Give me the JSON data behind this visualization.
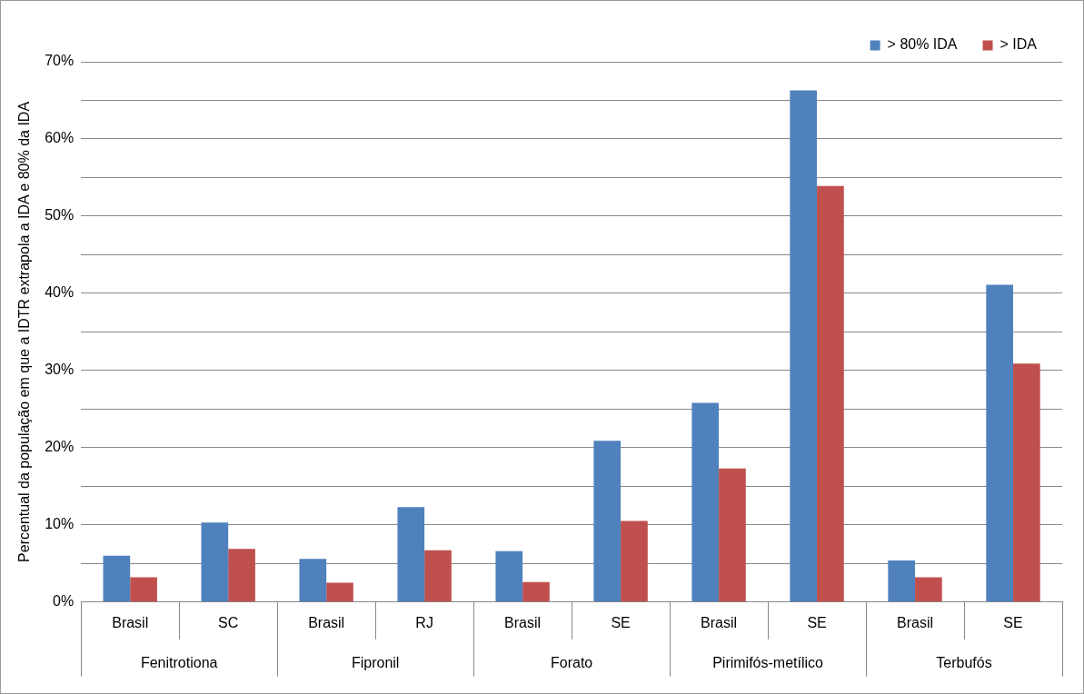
{
  "chart_data": {
    "type": "bar",
    "ylabel": "Percentual da população em que a IDTR extrapola a IDA e 80% da IDA",
    "categories": [
      "Brasil",
      "SC",
      "Brasil",
      "RJ",
      "Brasil",
      "SE",
      "Brasil",
      "SE",
      "Brasil",
      "SE"
    ],
    "annotations": [
      "Fenitrotiona",
      "Fipronil",
      "Forato",
      "Pirimifós-metílico",
      "Terbufós"
    ],
    "series": [
      {
        "name": "> 80% IDA",
        "color": "#4f81bd",
        "values": [
          6.0,
          10.3,
          5.6,
          12.3,
          6.6,
          20.9,
          25.8,
          66.3,
          5.4,
          41.1
        ]
      },
      {
        "name": "> IDA",
        "color": "#c0504d",
        "values": [
          3.2,
          6.9,
          2.5,
          6.7,
          2.6,
          10.5,
          17.3,
          53.9,
          3.2,
          30.9
        ]
      }
    ],
    "ylim": [
      0,
      70
    ],
    "yticks": [
      {
        "value": 0,
        "label": "0%"
      },
      {
        "value": 5,
        "label": null
      },
      {
        "value": 10,
        "label": "10%"
      },
      {
        "value": 15,
        "label": null
      },
      {
        "value": 20,
        "label": "20%"
      },
      {
        "value": 25,
        "label": null
      },
      {
        "value": 30,
        "label": "30%"
      },
      {
        "value": 35,
        "label": null
      },
      {
        "value": 40,
        "label": "40%"
      },
      {
        "value": 45,
        "label": null
      },
      {
        "value": 50,
        "label": "50%"
      },
      {
        "value": 55,
        "label": null
      },
      {
        "value": 60,
        "label": "60%"
      },
      {
        "value": 65,
        "label": null
      },
      {
        "value": 70,
        "label": "70%"
      }
    ],
    "grid": "y",
    "legend": "top right"
  }
}
